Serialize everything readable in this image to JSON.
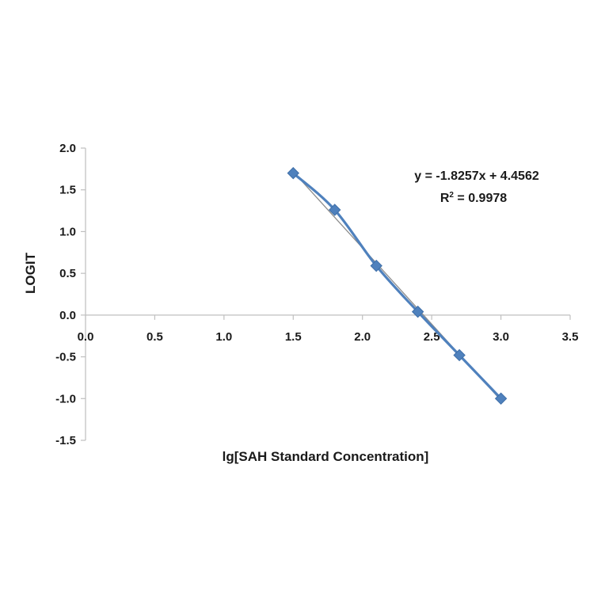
{
  "chart_data": {
    "type": "scatter",
    "title": "",
    "xlabel": "lg[SAH Standard Concentration]",
    "ylabel": "LOGIT",
    "xlim": [
      0.0,
      3.5
    ],
    "ylim": [
      -1.5,
      2.0
    ],
    "x_ticks": [
      "0.0",
      "0.5",
      "1.0",
      "1.5",
      "2.0",
      "2.5",
      "3.0",
      "3.5"
    ],
    "y_ticks": [
      "2.0",
      "1.5",
      "1.0",
      "0.5",
      "0.0",
      "-0.5",
      "-1.0",
      "-1.5"
    ],
    "grid": false,
    "legend": "none",
    "series": [
      {
        "color": "#4f81bd",
        "marker": "diamond",
        "smooth": true,
        "x": [
          1.5,
          1.8,
          2.1,
          2.4,
          2.7,
          3.0
        ],
        "y": [
          1.7,
          1.26,
          0.59,
          0.04,
          -0.48,
          -1.0
        ]
      }
    ],
    "trendline": {
      "type": "linear",
      "slope": -1.8257,
      "intercept": 4.4562,
      "color": "#8c8c8c",
      "x_range": [
        1.5,
        3.0
      ]
    },
    "annotations": {
      "equation": "y = -1.8257x + 4.4562",
      "r2_prefix": "R",
      "r2_sup": "2",
      "r2_value": " = 0.9978"
    }
  }
}
